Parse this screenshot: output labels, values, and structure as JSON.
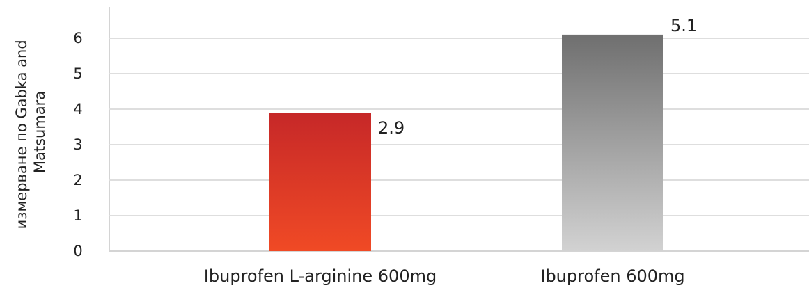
{
  "chart_data": {
    "type": "bar",
    "categories": [
      "Ibuprofen L-arginine 600mg",
      "Ibuprofen 600mg"
    ],
    "values": [
      2.9,
      5.1
    ],
    "data_labels": [
      "2.9",
      "5.1"
    ],
    "title": "",
    "xlabel": "",
    "ylabel": "измерване по Gabka and Matsumara",
    "ylabel_lines": [
      "измерване по Gabka and",
      "Matsumara"
    ],
    "yticks": [
      "0",
      "1",
      "2",
      "3",
      "4",
      "5",
      "6"
    ],
    "ylim": [
      0,
      7
    ],
    "grid": true,
    "legend": "none",
    "bar_colors": [
      {
        "top": "#c62828",
        "bottom": "#f04a25"
      },
      {
        "top": "#6f6f6f",
        "bottom": "#d2d2d2"
      }
    ]
  }
}
